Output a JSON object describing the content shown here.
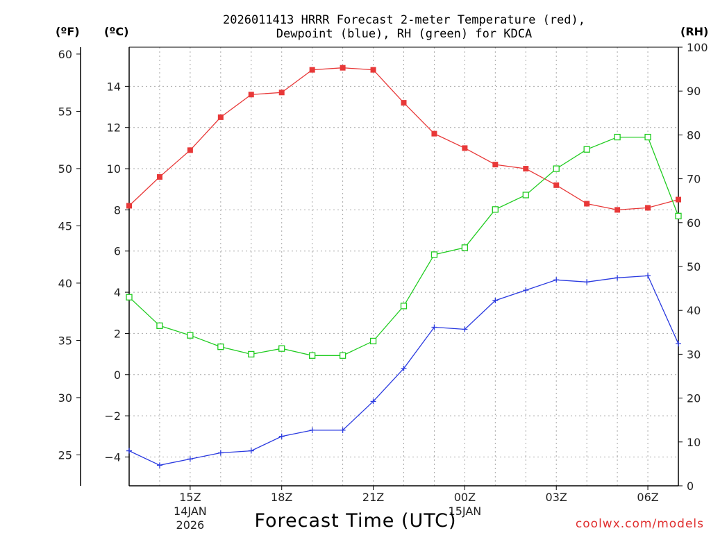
{
  "chart_data": {
    "type": "line",
    "title": [
      "2026011413 HRRR Forecast 2-meter Temperature (red),",
      "Dewpoint (blue), RH (green) for KDCA"
    ],
    "xlabel": "Forecast Time (UTC)",
    "credit": "coolwx.com/models",
    "units": {
      "fahrenheit": "(ºF)",
      "celsius": "(ºC)",
      "rh": "(RH)"
    },
    "x": [
      13,
      14,
      15,
      16,
      17,
      18,
      19,
      20,
      21,
      22,
      23,
      24,
      25,
      26,
      27,
      28,
      29,
      30,
      31
    ],
    "xlim": [
      13,
      31
    ],
    "x_ticks": [
      {
        "value": 15,
        "label": "15Z",
        "sub": [
          "14JAN",
          "2026"
        ]
      },
      {
        "value": 18,
        "label": "18Z",
        "sub": []
      },
      {
        "value": 21,
        "label": "21Z",
        "sub": []
      },
      {
        "value": 24,
        "label": "00Z",
        "sub": [
          "15JAN"
        ]
      },
      {
        "value": 27,
        "label": "03Z",
        "sub": []
      },
      {
        "value": 30,
        "label": "06Z",
        "sub": []
      }
    ],
    "y_celsius": {
      "lim": [
        -5.4,
        15.9
      ],
      "ticks": [
        -4,
        -2,
        0,
        2,
        4,
        6,
        8,
        10,
        12,
        14
      ],
      "labels": [
        "−4",
        "−2",
        "0",
        "2",
        "4",
        "6",
        "8",
        "10",
        "12",
        "14"
      ]
    },
    "y_fahrenheit": {
      "lim": [
        22.3,
        60.6
      ],
      "ticks": [
        25,
        30,
        35,
        40,
        45,
        50,
        55,
        60
      ],
      "labels": [
        "25",
        "30",
        "35",
        "40",
        "45",
        "50",
        "55",
        "60"
      ]
    },
    "y_rh": {
      "lim": [
        0,
        100
      ],
      "ticks": [
        0,
        10,
        20,
        30,
        40,
        50,
        60,
        70,
        80,
        90,
        100
      ],
      "labels": [
        "0",
        "10",
        "20",
        "30",
        "40",
        "50",
        "60",
        "70",
        "80",
        "90",
        "100"
      ]
    },
    "series": [
      {
        "name": "Temperature",
        "axis": "celsius",
        "color": "#e83838",
        "marker": "filled-square",
        "values": [
          8.2,
          9.6,
          10.9,
          12.5,
          13.6,
          13.7,
          14.8,
          14.9,
          14.8,
          13.2,
          11.7,
          11.0,
          10.2,
          10.0,
          9.2,
          8.3,
          8.0,
          8.1,
          8.5
        ]
      },
      {
        "name": "Dewpoint",
        "axis": "celsius",
        "color": "#2a3ae0",
        "marker": "plus",
        "values": [
          -3.7,
          -4.4,
          -4.1,
          -3.8,
          -3.7,
          -3.0,
          -2.7,
          -2.7,
          -1.3,
          0.3,
          2.3,
          2.2,
          3.6,
          4.1,
          4.6,
          4.5,
          4.7,
          4.8,
          1.5
        ]
      },
      {
        "name": "RH",
        "axis": "rh",
        "color": "#20cc20",
        "marker": "open-square",
        "values": [
          43,
          36.5,
          34.3,
          31.7,
          30.0,
          31.3,
          29.7,
          29.7,
          33.0,
          41.0,
          52.7,
          54.3,
          63.0,
          66.3,
          72.3,
          76.7,
          79.5,
          79.5,
          61.5
        ]
      }
    ]
  }
}
